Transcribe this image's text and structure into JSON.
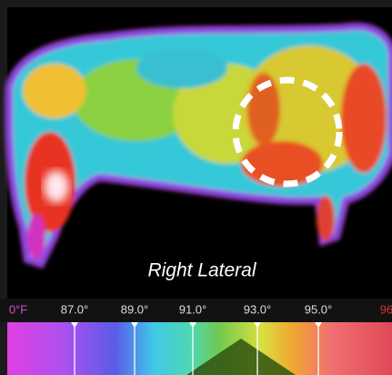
{
  "image": {
    "caption": "Right Lateral"
  },
  "scale": {
    "labels": [
      "0°F",
      "87.0°",
      "89.0°",
      "91.0°",
      "93.0°",
      "95.0°",
      "96"
    ]
  }
}
